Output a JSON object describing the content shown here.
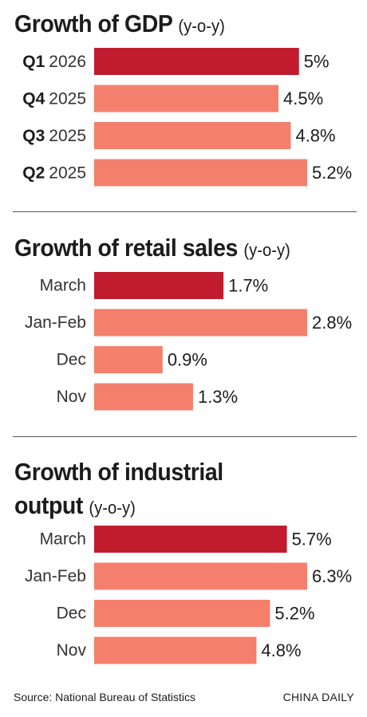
{
  "charts": {
    "gdp": {
      "title": "Growth of GDP",
      "unit": "(y-o-y)"
    },
    "retail": {
      "title": "Growth of retail sales",
      "unit": "(y-o-y)"
    },
    "industrial": {
      "title_line1": "Growth of industrial",
      "title_line2": "output",
      "unit": "(y-o-y)"
    }
  },
  "colors": {
    "highlight": "#c01c2e",
    "bar": "#f47f6c"
  },
  "chart_data": [
    {
      "type": "bar",
      "orientation": "horizontal",
      "title": "Growth of GDP (y-o-y)",
      "categories": [
        "Q1 2026",
        "Q4 2025",
        "Q3 2025",
        "Q2 2025"
      ],
      "category_main": [
        "Q1",
        "Q4",
        "Q3",
        "Q2"
      ],
      "category_sub": [
        "2026",
        "2025",
        "2025",
        "2025"
      ],
      "values": [
        5,
        4.5,
        4.8,
        5.2
      ],
      "value_labels": [
        "5%",
        "4.5%",
        "4.8%",
        "5.2%"
      ],
      "highlight_index": 0,
      "xlim": [
        0,
        5.2
      ],
      "grid": false
    },
    {
      "type": "bar",
      "orientation": "horizontal",
      "title": "Growth of retail sales (y-o-y)",
      "categories": [
        "March",
        "Jan-Feb",
        "Dec",
        "Nov"
      ],
      "values": [
        1.7,
        2.8,
        0.9,
        1.3
      ],
      "value_labels": [
        "1.7%",
        "2.8%",
        "0.9%",
        "1.3%"
      ],
      "highlight_index": 0,
      "xlim": [
        0,
        2.8
      ],
      "grid": false
    },
    {
      "type": "bar",
      "orientation": "horizontal",
      "title": "Growth of industrial output (y-o-y)",
      "categories": [
        "March",
        "Jan-Feb",
        "Dec",
        "Nov"
      ],
      "values": [
        5.7,
        6.3,
        5.2,
        4.8
      ],
      "value_labels": [
        "5.7%",
        "6.3%",
        "5.2%",
        "4.8%"
      ],
      "highlight_index": 0,
      "xlim": [
        0,
        6.3
      ],
      "grid": false
    }
  ],
  "footer": {
    "source": "Source: National Bureau of Statistics",
    "brand": "CHINA DAILY"
  }
}
